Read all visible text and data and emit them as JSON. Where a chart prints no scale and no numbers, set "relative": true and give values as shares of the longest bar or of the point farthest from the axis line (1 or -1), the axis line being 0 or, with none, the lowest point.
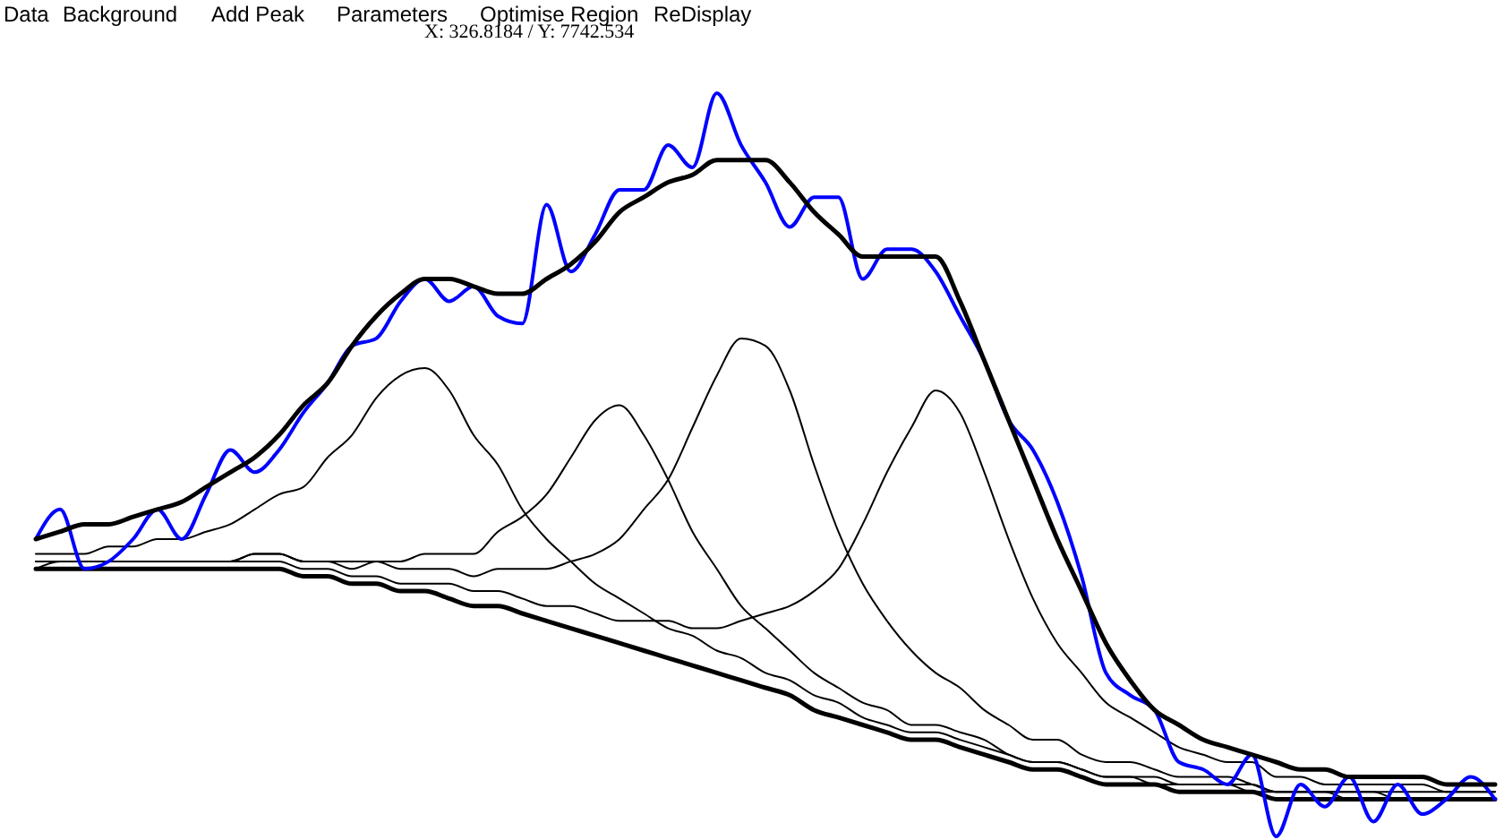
{
  "chart_data": {
    "type": "line",
    "relative": true,
    "legend": false,
    "grid": false,
    "annotations": [
      "Data",
      "Background",
      "Add Peak",
      "Parameters",
      "Optimise Region",
      "ReDisplay",
      "X: 326.8184 / Y: 7742.534"
    ],
    "categories": [
      null,
      null,
      null,
      null,
      null,
      null,
      null,
      null,
      null,
      null,
      null,
      null,
      null,
      null,
      null,
      null,
      null,
      null,
      null,
      null,
      null,
      null,
      null,
      null,
      null,
      null,
      null,
      null,
      null,
      null,
      null,
      null,
      null,
      null,
      null,
      null,
      null,
      null,
      null,
      null,
      null,
      null,
      null,
      null,
      null,
      null,
      null,
      null,
      null,
      null,
      null,
      null,
      null,
      null,
      null,
      null,
      null,
      null,
      null,
      null,
      null
    ],
    "series": [
      {
        "color": "#000000",
        "values": [
          0.36,
          0.36,
          0.36,
          0.36,
          0.36,
          0.36,
          0.36,
          0.36,
          0.36,
          0.36,
          0.36,
          0.35,
          0.35,
          0.34,
          0.34,
          0.33,
          0.33,
          0.32,
          0.31,
          0.31,
          0.3,
          0.29,
          0.28,
          0.27,
          0.26,
          0.25,
          0.24,
          0.23,
          0.22,
          0.21,
          0.2,
          0.19,
          0.17,
          0.16,
          0.15,
          0.14,
          0.13,
          0.13,
          0.12,
          0.11,
          0.1,
          0.09,
          0.09,
          0.08,
          0.07,
          0.07,
          0.07,
          0.06,
          0.06,
          0.06,
          0.06,
          0.05,
          0.05,
          0.05,
          0.05,
          0.05,
          0.05,
          0.05,
          0.05,
          0.05,
          0.05
        ]
      },
      {
        "color": "#000000",
        "values": [
          0.38,
          0.38,
          0.38,
          0.39,
          0.39,
          0.4,
          0.4,
          0.41,
          0.42,
          0.44,
          0.46,
          0.47,
          0.51,
          0.54,
          0.59,
          0.62,
          0.63,
          0.6,
          0.54,
          0.5,
          0.44,
          0.4,
          0.37,
          0.34,
          0.32,
          0.3,
          0.28,
          0.27,
          0.25,
          0.24,
          0.22,
          0.21,
          0.19,
          0.18,
          0.16,
          0.15,
          0.14,
          0.14,
          0.13,
          0.12,
          0.11,
          0.1,
          0.1,
          0.09,
          0.08,
          0.08,
          0.07,
          0.07,
          0.07,
          0.07,
          0.06,
          0.06,
          0.06,
          0.06,
          0.05,
          0.05,
          0.05,
          0.05,
          0.05,
          0.05,
          0.05
        ]
      },
      {
        "color": "#000000",
        "values": [
          0.37,
          0.37,
          0.37,
          0.37,
          0.37,
          0.37,
          0.37,
          0.37,
          0.37,
          0.38,
          0.38,
          0.37,
          0.37,
          0.37,
          0.37,
          0.37,
          0.38,
          0.38,
          0.38,
          0.41,
          0.43,
          0.46,
          0.51,
          0.56,
          0.58,
          0.54,
          0.48,
          0.41,
          0.36,
          0.31,
          0.28,
          0.25,
          0.22,
          0.2,
          0.18,
          0.17,
          0.15,
          0.15,
          0.14,
          0.13,
          0.11,
          0.1,
          0.1,
          0.09,
          0.08,
          0.08,
          0.08,
          0.07,
          0.07,
          0.07,
          0.07,
          0.06,
          0.06,
          0.06,
          0.06,
          0.06,
          0.05,
          0.05,
          0.05,
          0.05,
          0.05
        ]
      },
      {
        "color": "#000000",
        "values": [
          0.37,
          0.37,
          0.37,
          0.37,
          0.37,
          0.37,
          0.37,
          0.37,
          0.37,
          0.38,
          0.38,
          0.37,
          0.37,
          0.36,
          0.37,
          0.36,
          0.36,
          0.36,
          0.35,
          0.36,
          0.36,
          0.36,
          0.37,
          0.38,
          0.4,
          0.44,
          0.48,
          0.55,
          0.62,
          0.67,
          0.66,
          0.6,
          0.5,
          0.41,
          0.34,
          0.29,
          0.25,
          0.22,
          0.2,
          0.17,
          0.15,
          0.13,
          0.13,
          0.11,
          0.1,
          0.1,
          0.09,
          0.08,
          0.08,
          0.08,
          0.07,
          0.06,
          0.06,
          0.06,
          0.06,
          0.06,
          0.06,
          0.06,
          0.06,
          0.06,
          0.06
        ]
      },
      {
        "color": "#000000",
        "values": [
          0.36,
          0.37,
          0.37,
          0.37,
          0.37,
          0.37,
          0.37,
          0.37,
          0.37,
          0.37,
          0.37,
          0.36,
          0.36,
          0.35,
          0.35,
          0.34,
          0.34,
          0.34,
          0.33,
          0.33,
          0.32,
          0.31,
          0.31,
          0.3,
          0.29,
          0.29,
          0.29,
          0.28,
          0.28,
          0.29,
          0.3,
          0.31,
          0.33,
          0.36,
          0.42,
          0.49,
          0.55,
          0.6,
          0.57,
          0.49,
          0.4,
          0.32,
          0.26,
          0.22,
          0.18,
          0.16,
          0.14,
          0.12,
          0.11,
          0.1,
          0.1,
          0.08,
          0.08,
          0.07,
          0.07,
          0.07,
          0.07,
          0.07,
          0.06,
          0.06,
          0.06
        ]
      },
      {
        "color": "#0000ff",
        "values": [
          0.4,
          0.44,
          0.36,
          0.37,
          0.4,
          0.44,
          0.4,
          0.46,
          0.52,
          0.49,
          0.52,
          0.57,
          0.61,
          0.66,
          0.67,
          0.72,
          0.75,
          0.72,
          0.74,
          0.7,
          0.69,
          0.85,
          0.76,
          0.81,
          0.87,
          0.87,
          0.93,
          0.9,
          1.0,
          0.93,
          0.88,
          0.82,
          0.86,
          0.86,
          0.75,
          0.79,
          0.79,
          0.76,
          0.7,
          0.64,
          0.56,
          0.52,
          0.45,
          0.35,
          0.22,
          0.19,
          0.17,
          0.1,
          0.09,
          0.07,
          0.11,
          0.0,
          0.07,
          0.04,
          0.08,
          0.02,
          0.07,
          0.03,
          0.05,
          0.08,
          0.05
        ]
      },
      {
        "color": "#000000",
        "values": [
          0.4,
          0.41,
          0.42,
          0.42,
          0.43,
          0.44,
          0.45,
          0.47,
          0.49,
          0.51,
          0.54,
          0.58,
          0.61,
          0.66,
          0.7,
          0.73,
          0.75,
          0.75,
          0.74,
          0.73,
          0.73,
          0.75,
          0.77,
          0.8,
          0.84,
          0.86,
          0.88,
          0.89,
          0.91,
          0.91,
          0.91,
          0.88,
          0.84,
          0.81,
          0.78,
          0.78,
          0.78,
          0.78,
          0.72,
          0.64,
          0.56,
          0.48,
          0.4,
          0.33,
          0.26,
          0.21,
          0.17,
          0.15,
          0.13,
          0.12,
          0.11,
          0.1,
          0.09,
          0.09,
          0.08,
          0.08,
          0.08,
          0.08,
          0.07,
          0.07,
          0.07
        ]
      }
    ]
  }
}
